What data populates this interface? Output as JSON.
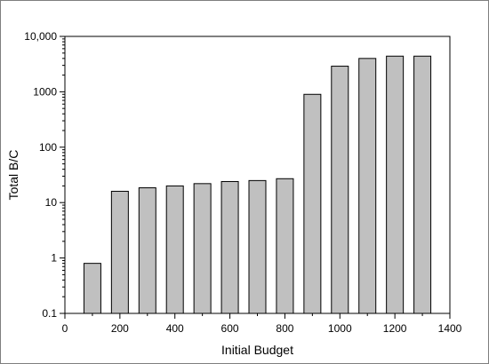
{
  "chart_data": {
    "type": "bar",
    "title": "",
    "xlabel": "Initial Budget",
    "ylabel": "Total B/C",
    "x_scale": "linear",
    "y_scale": "log",
    "xlim": [
      0,
      1400
    ],
    "ylim": [
      0.1,
      10000
    ],
    "x_ticks": [
      0,
      200,
      400,
      600,
      800,
      1000,
      1200,
      1400
    ],
    "x_tick_labels": [
      "0",
      "200",
      "400",
      "600",
      "800",
      "1000",
      "1200",
      "1400"
    ],
    "y_ticks": [
      0.1,
      1,
      10,
      100,
      1000,
      10000
    ],
    "y_tick_labels": [
      "0.1",
      "1",
      "10",
      "100",
      "1000",
      "10,000"
    ],
    "grid": false,
    "legend": "none",
    "bar_color": "#c0c0c0",
    "bar_edge_color": "#000000",
    "x": [
      100,
      200,
      300,
      400,
      500,
      600,
      700,
      800,
      900,
      1000,
      1100,
      1200,
      1300
    ],
    "values": [
      0.8,
      16,
      18.5,
      20,
      22,
      24,
      25,
      27,
      900,
      2900,
      4000,
      4400,
      4400
    ]
  }
}
